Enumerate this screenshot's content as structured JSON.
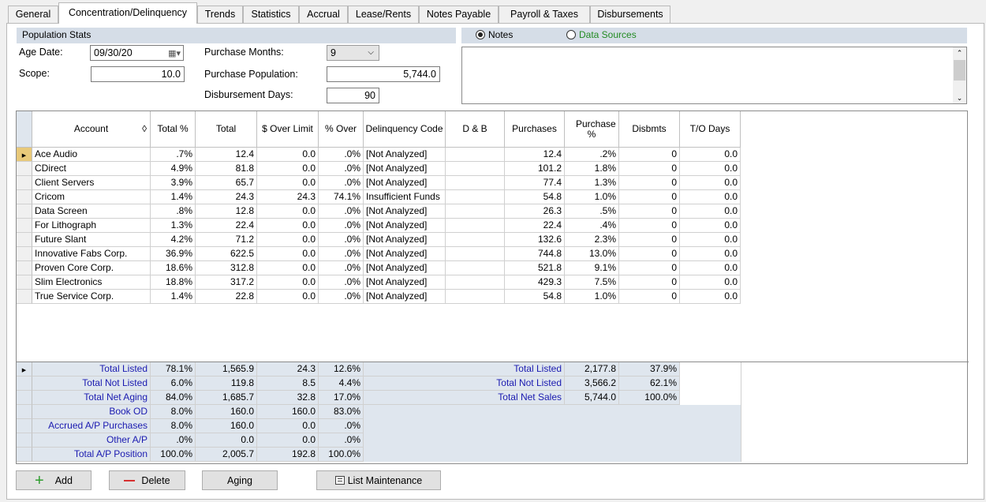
{
  "tabs": [
    {
      "label": "General"
    },
    {
      "label": "Concentration/Delinquency"
    },
    {
      "label": "Trends"
    },
    {
      "label": "Statistics"
    },
    {
      "label": "Accrual"
    },
    {
      "label": "Lease/Rents"
    },
    {
      "label": "Notes Payable"
    },
    {
      "label": "Payroll & Taxes"
    },
    {
      "label": "Disbursements"
    }
  ],
  "population": {
    "title": "Population Stats",
    "age_date_label": "Age Date:",
    "age_date_value": "09/30/20",
    "scope_label": "Scope:",
    "scope_value": "10.0",
    "purchase_months_label": "Purchase Months:",
    "purchase_months_value": "9",
    "purchase_population_label": "Purchase Population:",
    "purchase_population_value": "5,744.0",
    "disbursement_days_label": "Disbursement Days:",
    "disbursement_days_value": "90"
  },
  "notes": {
    "notes_label": "Notes",
    "data_sources_label": "Data Sources",
    "data_sources_color": "#228b22"
  },
  "grid": {
    "headers": [
      "Account",
      "Total %",
      "Total",
      "$ Over Limit",
      "% Over",
      "Delinquency Code",
      "D & B",
      "Purchases",
      "Purchase %",
      "Disbmts",
      "T/O Days"
    ],
    "rows": [
      [
        "Ace Audio",
        ".7%",
        "12.4",
        "0.0",
        ".0%",
        "[Not Analyzed]",
        "",
        "12.4",
        ".2%",
        "0",
        "0.0"
      ],
      [
        "CDirect",
        "4.9%",
        "81.8",
        "0.0",
        ".0%",
        "[Not Analyzed]",
        "",
        "101.2",
        "1.8%",
        "0",
        "0.0"
      ],
      [
        "Client Servers",
        "3.9%",
        "65.7",
        "0.0",
        ".0%",
        "[Not Analyzed]",
        "",
        "77.4",
        "1.3%",
        "0",
        "0.0"
      ],
      [
        "Cricom",
        "1.4%",
        "24.3",
        "24.3",
        "74.1%",
        "Insufficient Funds",
        "",
        "54.8",
        "1.0%",
        "0",
        "0.0"
      ],
      [
        "Data Screen",
        ".8%",
        "12.8",
        "0.0",
        ".0%",
        "[Not Analyzed]",
        "",
        "26.3",
        ".5%",
        "0",
        "0.0"
      ],
      [
        "For Lithograph",
        "1.3%",
        "22.4",
        "0.0",
        ".0%",
        "[Not Analyzed]",
        "",
        "22.4",
        ".4%",
        "0",
        "0.0"
      ],
      [
        "Future Slant",
        "4.2%",
        "71.2",
        "0.0",
        ".0%",
        "[Not Analyzed]",
        "",
        "132.6",
        "2.3%",
        "0",
        "0.0"
      ],
      [
        "Innovative Fabs Corp.",
        "36.9%",
        "622.5",
        "0.0",
        ".0%",
        "[Not Analyzed]",
        "",
        "744.8",
        "13.0%",
        "0",
        "0.0"
      ],
      [
        "Proven Core Corp.",
        "18.6%",
        "312.8",
        "0.0",
        ".0%",
        "[Not Analyzed]",
        "",
        "521.8",
        "9.1%",
        "0",
        "0.0"
      ],
      [
        "Slim Electronics",
        "18.8%",
        "317.2",
        "0.0",
        ".0%",
        "[Not Analyzed]",
        "",
        "429.3",
        "7.5%",
        "0",
        "0.0"
      ],
      [
        "True Service Corp.",
        "1.4%",
        "22.8",
        "0.0",
        ".0%",
        "[Not Analyzed]",
        "",
        "54.8",
        "1.0%",
        "0",
        "0.0"
      ]
    ]
  },
  "totals_left": [
    [
      "Total Listed",
      "78.1%",
      "1,565.9",
      "24.3",
      "12.6%"
    ],
    [
      "Total Not Listed",
      "6.0%",
      "119.8",
      "8.5",
      "4.4%"
    ],
    [
      "Total Net Aging",
      "84.0%",
      "1,685.7",
      "32.8",
      "17.0%"
    ],
    [
      "Book OD",
      "8.0%",
      "160.0",
      "160.0",
      "83.0%"
    ],
    [
      "Accrued A/P Purchases",
      "8.0%",
      "160.0",
      "0.0",
      ".0%"
    ],
    [
      "Other A/P",
      ".0%",
      "0.0",
      "0.0",
      ".0%"
    ],
    [
      "Total A/P Position",
      "100.0%",
      "2,005.7",
      "192.8",
      "100.0%"
    ]
  ],
  "totals_right": [
    [
      "Total Listed",
      "2,177.8",
      "37.9%"
    ],
    [
      "Total Not Listed",
      "3,566.2",
      "62.1%"
    ],
    [
      "Total Net Sales",
      "5,744.0",
      "100.0%"
    ]
  ],
  "buttons": {
    "add": "Add",
    "delete": "Delete",
    "aging": "Aging",
    "list_maintenance": "List Maintenance"
  },
  "colors": {
    "total_label": "#1a1ab0",
    "add_icon": "#2e9d2e",
    "delete_icon": "#d63030",
    "header_bg": "#d5dde7"
  }
}
